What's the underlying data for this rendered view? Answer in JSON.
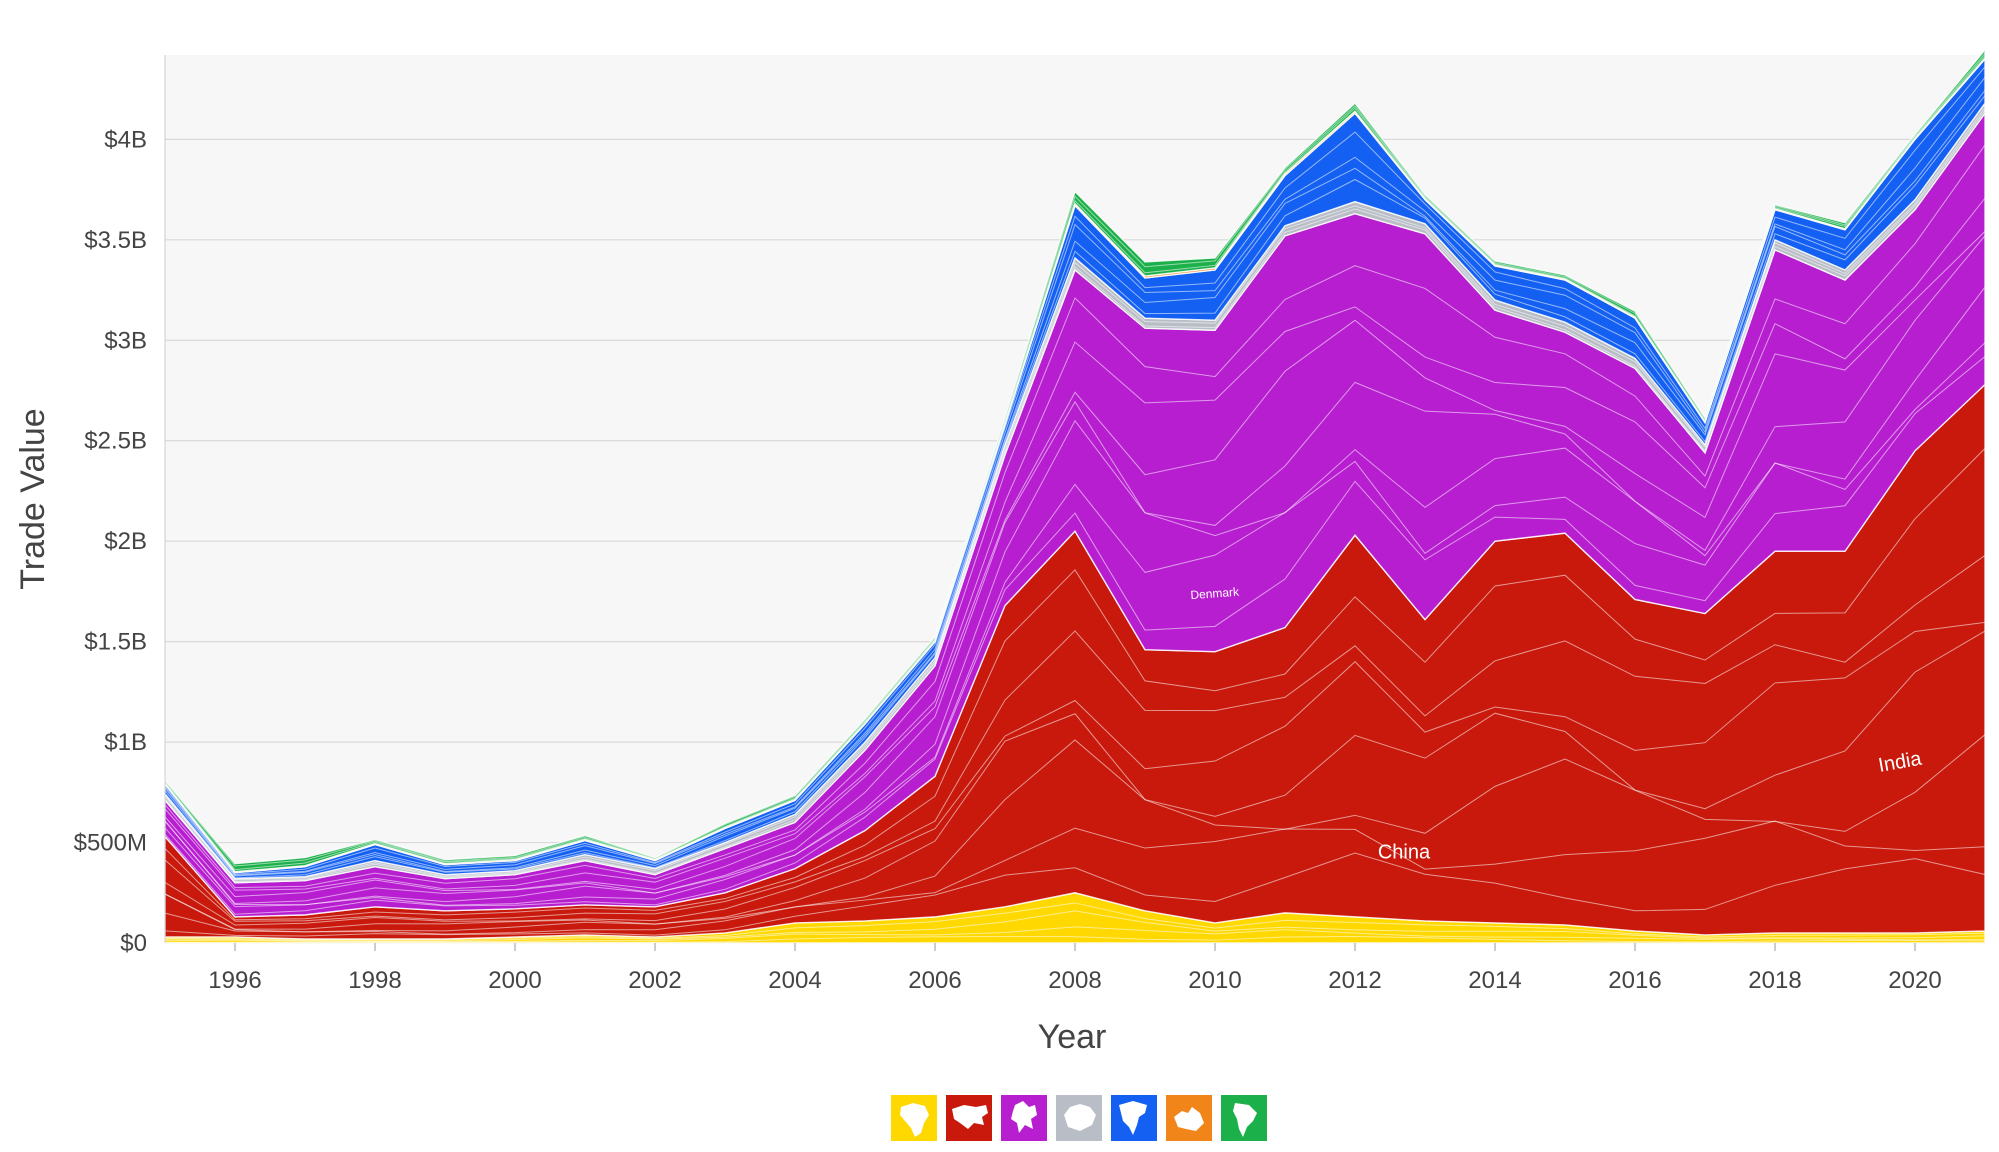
{
  "chart_data": {
    "type": "area",
    "stacked": true,
    "xlabel": "Year",
    "ylabel": "Trade Value",
    "x": [
      1995,
      1996,
      1997,
      1998,
      1999,
      2000,
      2001,
      2002,
      2003,
      2004,
      2005,
      2006,
      2007,
      2008,
      2009,
      2010,
      2011,
      2012,
      2013,
      2014,
      2015,
      2016,
      2017,
      2018,
      2019,
      2020,
      2021
    ],
    "xlim": [
      1995,
      2021
    ],
    "ylim": [
      0,
      4.42
    ],
    "y_unit": "billions USD",
    "x_ticks": [
      "1996",
      "1998",
      "2000",
      "2002",
      "2004",
      "2006",
      "2008",
      "2010",
      "2012",
      "2014",
      "2016",
      "2018",
      "2020"
    ],
    "y_ticks": [
      {
        "value": 0,
        "label": "$0"
      },
      {
        "value": 0.5,
        "label": "$500M"
      },
      {
        "value": 1,
        "label": "$1B"
      },
      {
        "value": 1.5,
        "label": "$1.5B"
      },
      {
        "value": 2,
        "label": "$2B"
      },
      {
        "value": 2.5,
        "label": "$2.5B"
      },
      {
        "value": 3,
        "label": "$3B"
      },
      {
        "value": 3.5,
        "label": "$3.5B"
      },
      {
        "value": 4,
        "label": "$4B"
      }
    ],
    "grid": true,
    "legend_position": "bottom-center",
    "series": [
      {
        "color": "#ffd800",
        "icon": "africa-icon",
        "values": [
          0.03,
          0.03,
          0.02,
          0.02,
          0.02,
          0.03,
          0.04,
          0.03,
          0.05,
          0.1,
          0.11,
          0.13,
          0.18,
          0.25,
          0.16,
          0.1,
          0.15,
          0.13,
          0.11,
          0.1,
          0.09,
          0.06,
          0.04,
          0.05,
          0.05,
          0.05,
          0.06
        ]
      },
      {
        "color": "#c8190c",
        "icon": "asia-icon",
        "values": [
          0.5,
          0.1,
          0.12,
          0.16,
          0.14,
          0.14,
          0.15,
          0.15,
          0.2,
          0.27,
          0.45,
          0.7,
          1.5,
          1.8,
          1.3,
          1.35,
          1.42,
          1.9,
          1.5,
          1.9,
          1.95,
          1.65,
          1.6,
          1.9,
          1.9,
          2.4,
          2.72
        ]
      },
      {
        "color": "#b71ed0",
        "icon": "europe-icon",
        "values": [
          0.18,
          0.17,
          0.17,
          0.2,
          0.16,
          0.17,
          0.22,
          0.16,
          0.22,
          0.23,
          0.4,
          0.55,
          0.75,
          1.3,
          1.6,
          1.6,
          1.95,
          1.6,
          1.92,
          1.15,
          1.0,
          1.15,
          0.8,
          1.5,
          1.35,
          1.2,
          1.35
        ]
      },
      {
        "color": "#b8bdc6",
        "icon": "antarctica-icon",
        "values": [
          0.03,
          0.02,
          0.02,
          0.03,
          0.02,
          0.02,
          0.03,
          0.03,
          0.03,
          0.04,
          0.04,
          0.04,
          0.05,
          0.06,
          0.05,
          0.05,
          0.05,
          0.06,
          0.05,
          0.05,
          0.05,
          0.05,
          0.04,
          0.05,
          0.05,
          0.05,
          0.05
        ]
      },
      {
        "color": "#1360f2",
        "icon": "north-america-icon",
        "values": [
          0.05,
          0.03,
          0.05,
          0.08,
          0.05,
          0.05,
          0.07,
          0.04,
          0.07,
          0.07,
          0.09,
          0.08,
          0.1,
          0.26,
          0.2,
          0.25,
          0.25,
          0.44,
          0.12,
          0.17,
          0.21,
          0.2,
          0.11,
          0.15,
          0.2,
          0.3,
          0.22
        ]
      },
      {
        "color": "#f2851a",
        "icon": "oceania-icon",
        "values": [
          0.005,
          0.005,
          0.005,
          0.005,
          0.005,
          0.005,
          0.005,
          0.005,
          0.005,
          0.005,
          0.005,
          0.005,
          0.005,
          0.01,
          0.01,
          0.01,
          0.01,
          0.01,
          0.005,
          0.005,
          0.005,
          0.005,
          0.005,
          0.005,
          0.005,
          0.005,
          0.005
        ]
      },
      {
        "color": "#1bb04a",
        "icon": "south-america-icon",
        "values": [
          0.015,
          0.04,
          0.04,
          0.02,
          0.02,
          0.02,
          0.02,
          0.01,
          0.02,
          0.02,
          0.02,
          0.02,
          0.03,
          0.06,
          0.07,
          0.05,
          0.03,
          0.04,
          0.02,
          0.02,
          0.02,
          0.03,
          0.02,
          0.02,
          0.03,
          0.02,
          0.04
        ]
      }
    ],
    "annotations": [
      {
        "text": "China",
        "x": 2012.7,
        "y": 0.42
      },
      {
        "text": "India",
        "x": 2019.8,
        "y": 0.87
      },
      {
        "text": "Denmark",
        "x": 2010.0,
        "y": 1.72
      }
    ],
    "legend": [
      {
        "icon": "africa-icon",
        "color": "#ffd800"
      },
      {
        "icon": "asia-icon",
        "color": "#c8190c"
      },
      {
        "icon": "europe-icon",
        "color": "#b71ed0"
      },
      {
        "icon": "antarctica-icon",
        "color": "#b8bdc6"
      },
      {
        "icon": "north-america-icon",
        "color": "#1360f2"
      },
      {
        "icon": "oceania-icon",
        "color": "#f2851a"
      },
      {
        "icon": "south-america-icon",
        "color": "#1bb04a"
      }
    ]
  }
}
